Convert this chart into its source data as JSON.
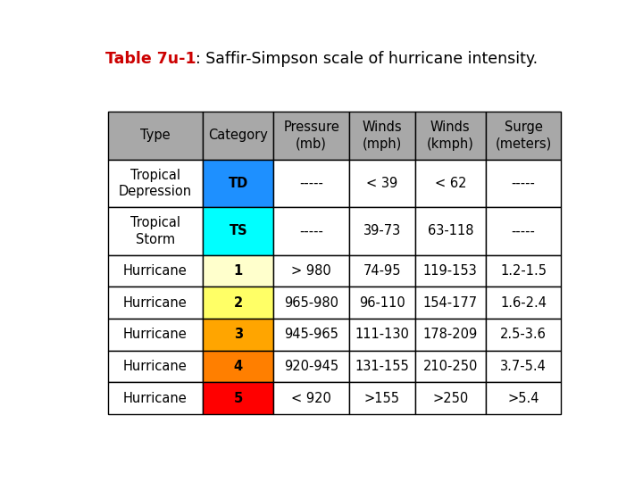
{
  "title_bold": "Table 7u-1",
  "title_rest": ": Saffir-Simpson scale of hurricane intensity.",
  "title_color_bold": "#cc0000",
  "title_color_rest": "#000000",
  "title_fontsize": 12.5,
  "header_bg": "#a8a8a8",
  "header_text_color": "#000000",
  "col_headers": [
    "Type",
    "Category",
    "Pressure\n(mb)",
    "Winds\n(mph)",
    "Winds\n(kmph)",
    "Surge\n(meters)"
  ],
  "rows": [
    [
      "Tropical\nDepression",
      "TD",
      "-----",
      "< 39",
      "< 62",
      "-----"
    ],
    [
      "Tropical\nStorm",
      "TS",
      "-----",
      "39-73",
      "63-118",
      "-----"
    ],
    [
      "Hurricane",
      "1",
      "> 980",
      "74-95",
      "119-153",
      "1.2-1.5"
    ],
    [
      "Hurricane",
      "2",
      "965-980",
      "96-110",
      "154-177",
      "1.6-2.4"
    ],
    [
      "Hurricane",
      "3",
      "945-965",
      "111-130",
      "178-209",
      "2.5-3.6"
    ],
    [
      "Hurricane",
      "4",
      "920-945",
      "131-155",
      "210-250",
      "3.7-5.4"
    ],
    [
      "Hurricane",
      "5",
      "< 920",
      ">155",
      ">250",
      ">5.4"
    ]
  ],
  "category_colors": [
    "#1E90FF",
    "#00FFFF",
    "#FFFFCC",
    "#FFFF66",
    "#FFA500",
    "#FF7F00",
    "#FF0000"
  ],
  "border_color": "#000000",
  "font_family": "DejaVu Sans",
  "table_fontsize": 10.5,
  "figsize": [
    7.2,
    5.4
  ],
  "dpi": 100
}
